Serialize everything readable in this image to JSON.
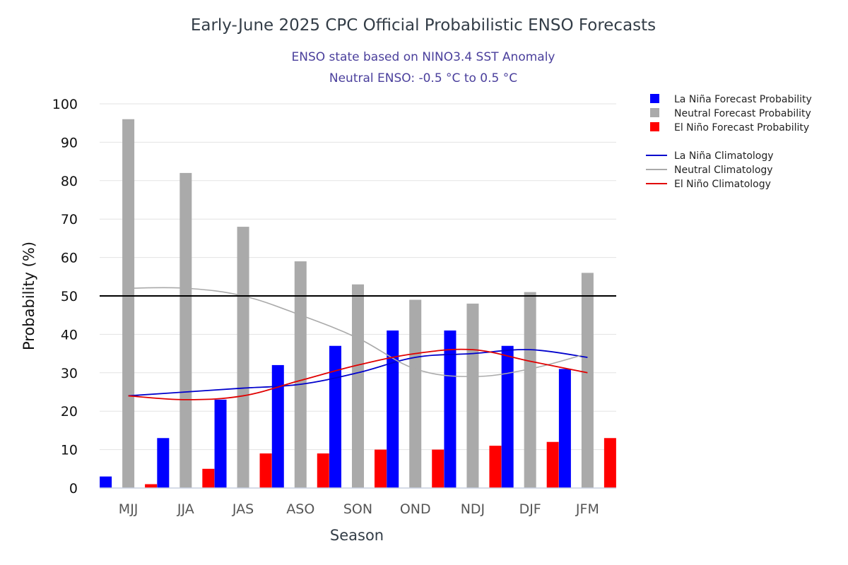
{
  "chart_data": {
    "type": "bar",
    "title": "Early-June 2025 CPC Official Probabilistic ENSO Forecasts",
    "subtitle_line1": "ENSO state based on NINO3.4 SST Anomaly",
    "subtitle_line2": "Neutral ENSO: -0.5 °C to 0.5 °C",
    "xlabel": "Season",
    "ylabel": "Probability (%)",
    "ylim": [
      0,
      100
    ],
    "yticks": [
      "0",
      "10",
      "20",
      "30",
      "40",
      "50",
      "60",
      "70",
      "80",
      "90",
      "100"
    ],
    "reference_line": 50,
    "categories": [
      "MJJ",
      "JJA",
      "JAS",
      "ASO",
      "SON",
      "OND",
      "NDJ",
      "DJF",
      "JFM"
    ],
    "series": [
      {
        "name": "La Niña Forecast Probability",
        "color": "#0000ff",
        "values": [
          3,
          13,
          23,
          32,
          37,
          41,
          41,
          37,
          31
        ]
      },
      {
        "name": "Neutral Forecast Probability",
        "color": "#aaaaaa",
        "values": [
          96,
          82,
          68,
          59,
          53,
          49,
          48,
          51,
          56
        ]
      },
      {
        "name": "El Niño Forecast Probability",
        "color": "#ff0000",
        "values": [
          1,
          5,
          9,
          9,
          10,
          10,
          11,
          12,
          13
        ]
      }
    ],
    "lines": [
      {
        "name": "La Niña Climatology",
        "color": "#0000cc",
        "values": [
          24,
          25,
          26,
          27,
          30,
          34,
          35,
          36,
          34
        ]
      },
      {
        "name": "Neutral Climatology",
        "color": "#aaaaaa",
        "values": [
          52,
          52,
          50,
          45,
          39,
          31,
          29,
          31,
          35
        ]
      },
      {
        "name": "El Niño Climatology",
        "color": "#e00000",
        "values": [
          24,
          23,
          24,
          28,
          32,
          35,
          36,
          33,
          30
        ]
      }
    ]
  }
}
